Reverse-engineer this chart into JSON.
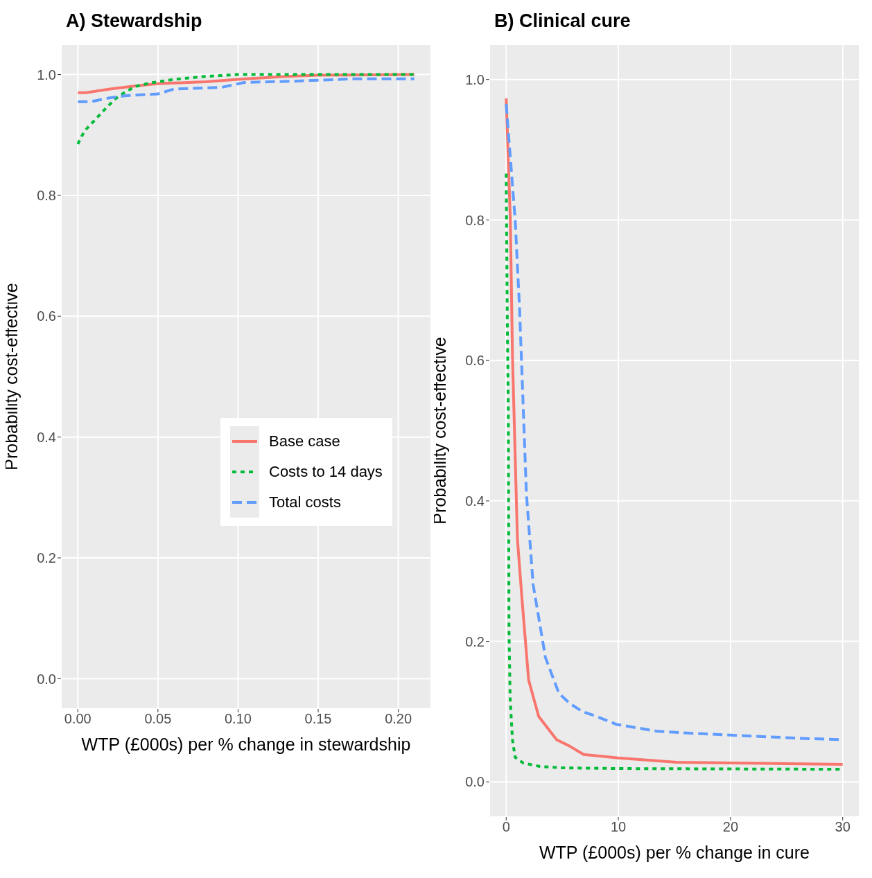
{
  "chart_data": [
    {
      "type": "line",
      "title": "A) Stewardship",
      "xlabel": "WTP (£000s) per % change in stewardship",
      "ylabel": "Probability cost-effective",
      "xlim": [
        -0.0105,
        0.2205
      ],
      "xticks": [
        {
          "value": 0,
          "label": "0.00"
        },
        {
          "value": 0.05,
          "label": "0.05"
        },
        {
          "value": 0.1,
          "label": "0.10"
        },
        {
          "value": 0.15,
          "label": "0.15"
        },
        {
          "value": 0.2,
          "label": "0.20"
        }
      ],
      "ylim": [
        -0.05,
        1.05
      ],
      "yticks": [
        {
          "value": 0,
          "label": "0.0"
        },
        {
          "value": 0.2,
          "label": "0.2"
        },
        {
          "value": 0.4,
          "label": "0.4"
        },
        {
          "value": 0.6,
          "label": "0.6"
        },
        {
          "value": 0.8,
          "label": "0.8"
        },
        {
          "value": 1,
          "label": "1.0"
        }
      ],
      "grid": true,
      "legend": "center right",
      "marker": "none",
      "series": [
        {
          "name": "Base case",
          "color": "#f8766d",
          "line_style": "solid",
          "x": [
            0,
            0.005,
            0.02,
            0.035,
            0.05,
            0.08,
            0.1,
            0.13,
            0.15,
            0.21
          ],
          "values": [
            0.97,
            0.97,
            0.976,
            0.981,
            0.985,
            0.988,
            0.992,
            0.997,
            0.999,
            1.0
          ]
        },
        {
          "name": "Costs to 14 days",
          "color": "#00ba38",
          "line_style": "dotted",
          "x": [
            0,
            0.004,
            0.016,
            0.023,
            0.03,
            0.037,
            0.045,
            0.06,
            0.08,
            0.1,
            0.21
          ],
          "values": [
            0.885,
            0.906,
            0.94,
            0.959,
            0.972,
            0.981,
            0.986,
            0.992,
            0.997,
            1.0,
            1.0
          ]
        },
        {
          "name": "Total costs",
          "color": "#619cff",
          "line_style": "dashed",
          "x": [
            0,
            0.008,
            0.019,
            0.03,
            0.05,
            0.06,
            0.09,
            0.104,
            0.135,
            0.173,
            0.21
          ],
          "values": [
            0.955,
            0.955,
            0.961,
            0.965,
            0.968,
            0.976,
            0.979,
            0.987,
            0.989,
            0.993,
            0.993
          ]
        }
      ]
    },
    {
      "type": "line",
      "title": "B) Clinical cure",
      "xlabel": "WTP (£000s) per % change in cure",
      "ylabel": "Probability cost-effective",
      "xlim": [
        -1.5,
        31.5
      ],
      "xticks": [
        0,
        10,
        20,
        30
      ],
      "ylim": [
        -0.05,
        1.05
      ],
      "yticks": [
        {
          "value": 0,
          "label": "0.0"
        },
        {
          "value": 0.2,
          "label": "0.2"
        },
        {
          "value": 0.4,
          "label": "0.4"
        },
        {
          "value": 0.6,
          "label": "0.6"
        },
        {
          "value": 0.8,
          "label": "0.8"
        },
        {
          "value": 1,
          "label": "1.0"
        }
      ],
      "grid": true,
      "marker": "none",
      "series": [
        {
          "color": "#f8766d",
          "line_style": "solid",
          "x": [
            0,
            0.37,
            0.56,
            1.0,
            1.4,
            2.0,
            2.9,
            4.5,
            5.65,
            6.9,
            10,
            15.2,
            30
          ],
          "values": [
            0.973,
            0.8,
            0.606,
            0.346,
            0.262,
            0.145,
            0.093,
            0.06,
            0.051,
            0.039,
            0.034,
            0.028,
            0.025
          ]
        },
        {
          "color": "#00ba38",
          "line_style": "dotted",
          "x": [
            0,
            0.1,
            0.19,
            0.25,
            0.35,
            0.56,
            0.8,
            1.5,
            3,
            5,
            10,
            30
          ],
          "values": [
            0.866,
            0.65,
            0.53,
            0.216,
            0.12,
            0.06,
            0.035,
            0.027,
            0.022,
            0.02,
            0.019,
            0.018
          ]
        },
        {
          "color": "#619cff",
          "line_style": "dashed",
          "x": [
            0,
            0.8,
            1.2,
            1.8,
            2.4,
            3.5,
            4.7,
            5.65,
            6.8,
            8.1,
            9.8,
            13.5,
            18.1,
            22.2,
            26.3,
            30
          ],
          "values": [
            0.965,
            0.8,
            0.671,
            0.411,
            0.281,
            0.177,
            0.126,
            0.112,
            0.1,
            0.093,
            0.082,
            0.072,
            0.068,
            0.065,
            0.062,
            0.06
          ]
        }
      ]
    }
  ]
}
